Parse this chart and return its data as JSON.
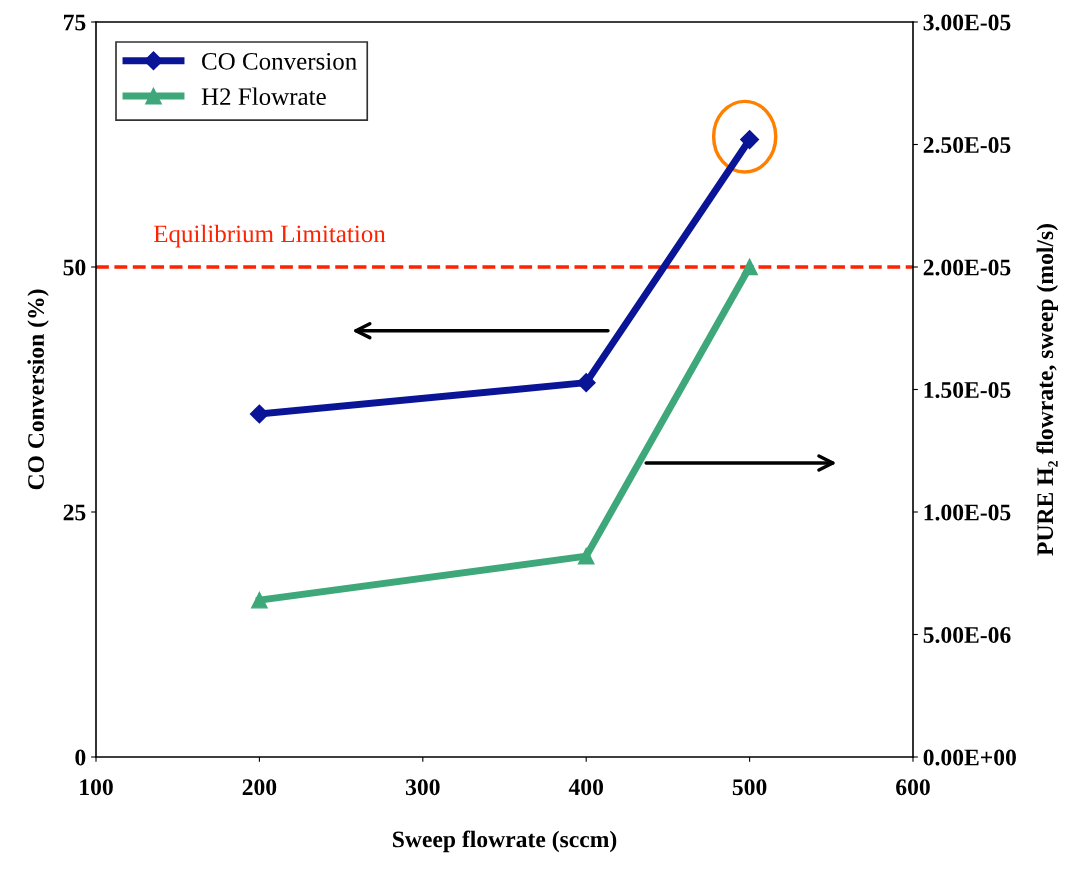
{
  "chart_data": {
    "type": "line",
    "xlabel": "Sweep flowrate (sccm)",
    "ylabel": "CO Conversion (%)",
    "y2label": "PURE H₂ flowrate, sweep (mol/s)",
    "x": [
      200,
      400,
      500
    ],
    "series": [
      {
        "name": "CO Conversion",
        "color": "#0a1496",
        "values": [
          35,
          38.2,
          63
        ],
        "marker": "diamond"
      },
      {
        "name": "H2 Flowrate",
        "color": "#3fa87a",
        "values": [
          6.4e-06,
          8.2e-06,
          2e-05
        ],
        "marker": "triangle",
        "axis": "y2"
      }
    ],
    "xlim": [
      100,
      600
    ],
    "xticks": [
      100,
      200,
      300,
      400,
      500,
      600
    ],
    "ylim": [
      0,
      75
    ],
    "yticks": [
      0,
      25,
      50,
      75
    ],
    "y2lim": [
      0,
      3e-05
    ],
    "y2ticks": [
      {
        "value": 0,
        "label": "0.00E+00"
      },
      {
        "value": 5e-06,
        "label": "5.00E-06"
      },
      {
        "value": 1e-05,
        "label": "1.00E-05"
      },
      {
        "value": 1.5e-05,
        "label": "1.50E-05"
      },
      {
        "value": 2e-05,
        "label": "2.00E-05"
      },
      {
        "value": 2.5e-05,
        "label": "2.50E-05"
      },
      {
        "value": 3e-05,
        "label": "3.00E-05"
      }
    ],
    "ref_lines": [
      {
        "axis": "y",
        "value": 50,
        "label": "Equilibrium Limitation",
        "color": "#ff2200",
        "line_style": "dashed"
      }
    ],
    "legend": "top left",
    "grid": false,
    "line_style": "solid"
  }
}
